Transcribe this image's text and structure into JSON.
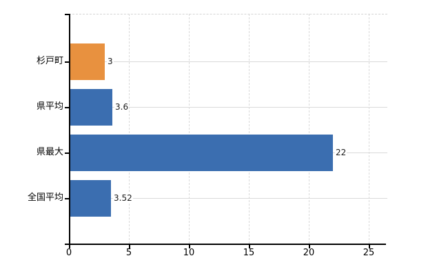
{
  "chart_data": {
    "type": "bar",
    "orientation": "horizontal",
    "title": "",
    "xlabel": "",
    "ylabel": "",
    "categories": [
      "杉戸町",
      "県平均",
      "県最大",
      "全国平均"
    ],
    "values": [
      3,
      3.6,
      22,
      3.52
    ],
    "value_labels": [
      "3",
      "3.6",
      "22",
      "3.52"
    ],
    "bar_colors": [
      "#e8913f",
      "#3b6eb0",
      "#3b6eb0",
      "#3b6eb0"
    ],
    "x_ticks": [
      0,
      5,
      10,
      15,
      20,
      25
    ],
    "x_tick_labels": [
      "0",
      "5",
      "10",
      "15",
      "20",
      "25"
    ],
    "xlim": [
      0,
      26.4
    ],
    "grid": true,
    "legend": false,
    "colors": {
      "highlight_bar": "#e8913f",
      "default_bar": "#3b6eb0",
      "gridline": "#d9d9d9",
      "axis": "#000000",
      "text": "#000000",
      "background": "#ffffff"
    }
  }
}
